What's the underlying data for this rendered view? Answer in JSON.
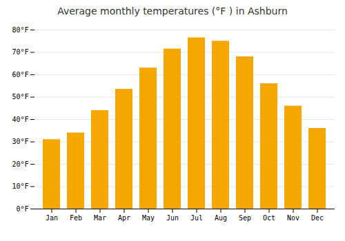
{
  "chart_data": {
    "type": "bar",
    "title": "Average monthly temperatures (°F ) in Ashburn",
    "categories": [
      "Jan",
      "Feb",
      "Mar",
      "Apr",
      "May",
      "Jun",
      "Jul",
      "Aug",
      "Sep",
      "Oct",
      "Nov",
      "Dec"
    ],
    "values": [
      31,
      34,
      44,
      53.5,
      63,
      71.5,
      76.5,
      75,
      68,
      56,
      46,
      36
    ],
    "color": "#F5A700",
    "ylim": [
      0,
      80
    ],
    "yticks": [
      {
        "value": 0,
        "label": "0°F"
      },
      {
        "value": 10,
        "label": "10°F"
      },
      {
        "value": 20,
        "label": "20°F"
      },
      {
        "value": 30,
        "label": "30°F"
      },
      {
        "value": 40,
        "label": "40°F"
      },
      {
        "value": 50,
        "label": "50°F"
      },
      {
        "value": 60,
        "label": "60°F"
      },
      {
        "value": 70,
        "label": "70°F"
      },
      {
        "value": 80,
        "label": "80°F"
      }
    ],
    "grid": true
  }
}
